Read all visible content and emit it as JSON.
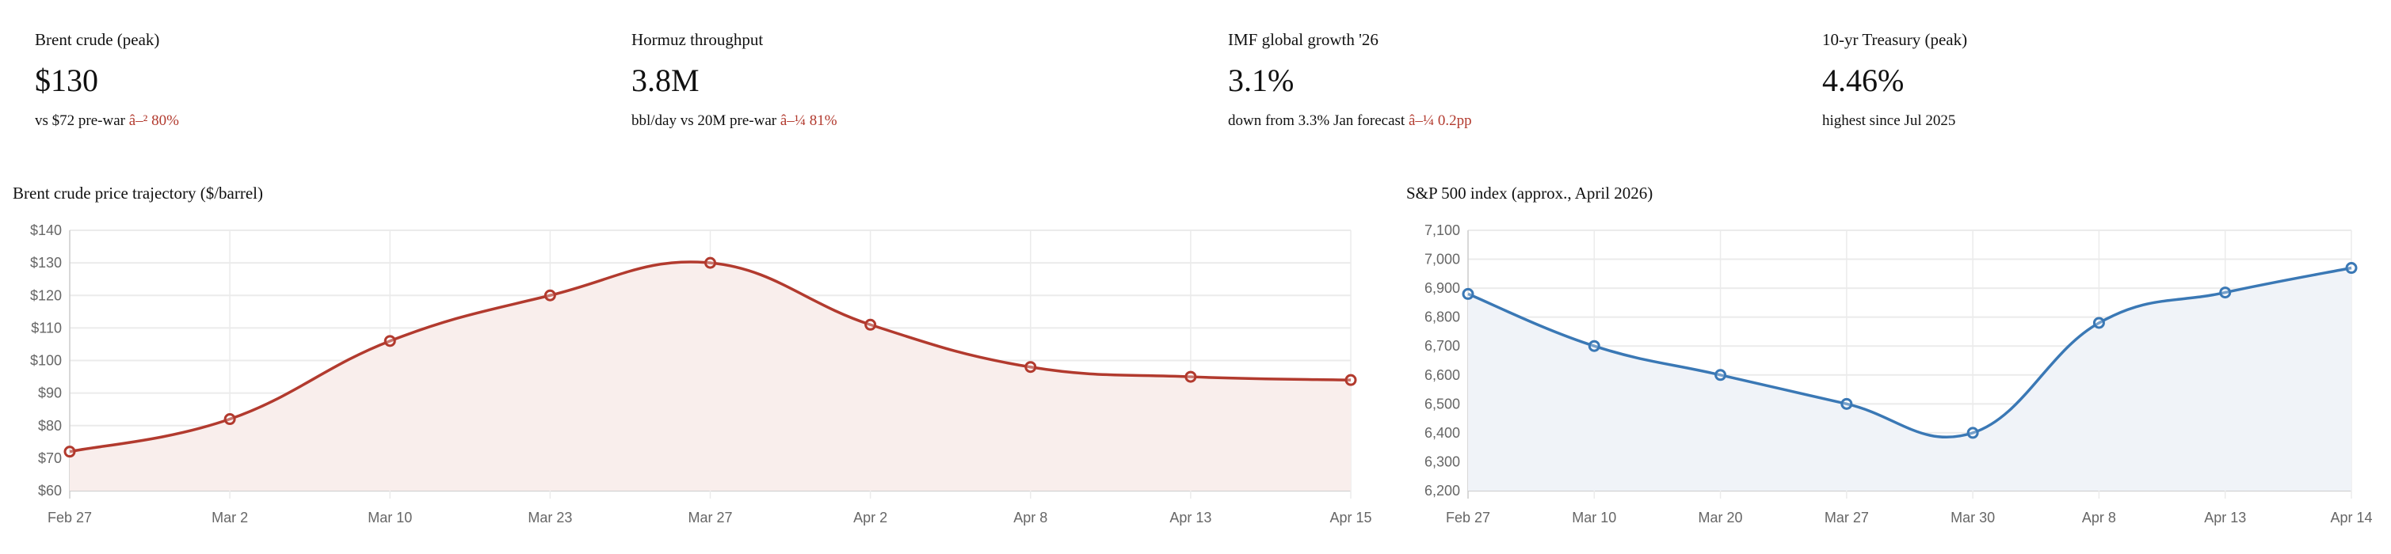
{
  "kpis": [
    {
      "label": "Brent crude (peak)",
      "value": "$130",
      "sub": "vs $72 pre-war",
      "change": "â–² 80%"
    },
    {
      "label": "Hormuz throughput",
      "value": "3.8M",
      "sub": "bbl/day vs 20M pre-war",
      "change": "â–¼ 81%"
    },
    {
      "label": "IMF global growth '26",
      "value": "3.1%",
      "sub": "down from 3.3% Jan forecast",
      "change": "â–¼ 0.2pp"
    },
    {
      "label": "10-yr Treasury (peak)",
      "value": "4.46%",
      "sub": "highest since Jul 2025",
      "change": ""
    }
  ],
  "chart_data": [
    {
      "type": "line",
      "title": "Brent crude price trajectory ($/barrel)",
      "categories": [
        "Feb 27",
        "Mar 2",
        "Mar 10",
        "Mar 23",
        "Mar 27",
        "Apr 2",
        "Apr 8",
        "Apr 13",
        "Apr 15"
      ],
      "values": [
        72,
        82,
        106,
        120,
        130,
        111,
        98,
        95,
        94
      ],
      "ylim": [
        60,
        140
      ],
      "ytick_step": 10,
      "ytick_prefix": "$",
      "color": "#b23a2e",
      "fill": "#f9eeec",
      "grid": true
    },
    {
      "type": "line",
      "title": "S&P 500 index (approx., April 2026)",
      "categories": [
        "Feb 27",
        "Mar 10",
        "Mar 20",
        "Mar 27",
        "Mar 30",
        "Apr 8",
        "Apr 13",
        "Apr 14"
      ],
      "values": [
        6880,
        6700,
        6600,
        6500,
        6400,
        6780,
        6885,
        6970
      ],
      "ylim": [
        6200,
        7100
      ],
      "ytick_step": 100,
      "ytick_prefix": "",
      "color": "#3a78b5",
      "fill": "#f0f3f8",
      "grid": true
    }
  ]
}
